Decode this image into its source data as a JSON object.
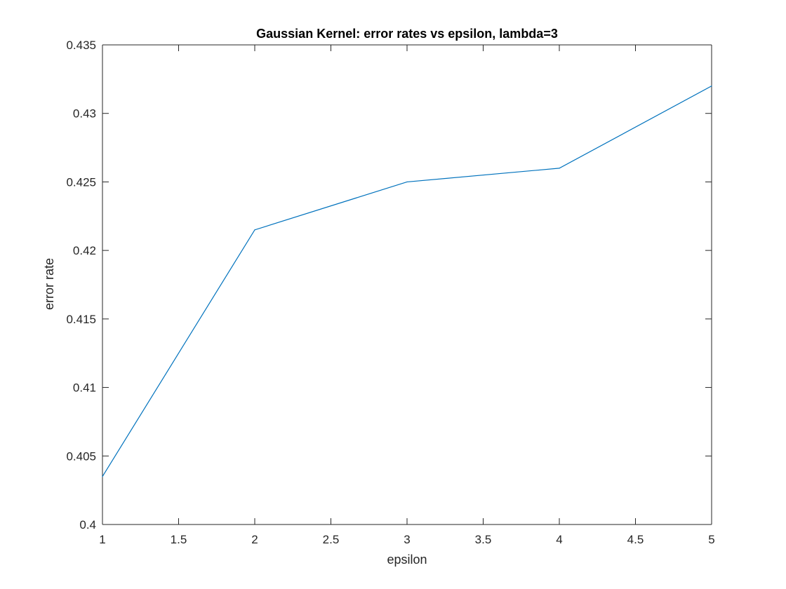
{
  "chart_data": {
    "type": "line",
    "title": "Gaussian Kernel: error rates vs epsilon, lambda=3",
    "xlabel": "epsilon",
    "ylabel": "error rate",
    "xlim": [
      1,
      5
    ],
    "ylim": [
      0.4,
      0.435
    ],
    "xticks": [
      1,
      1.5,
      2,
      2.5,
      3,
      3.5,
      4,
      4.5,
      5
    ],
    "xtick_labels": [
      "1",
      "1.5",
      "2",
      "2.5",
      "3",
      "3.5",
      "4",
      "4.5",
      "5"
    ],
    "yticks": [
      0.4,
      0.405,
      0.41,
      0.415,
      0.42,
      0.425,
      0.43,
      0.435
    ],
    "ytick_labels": [
      "0.4",
      "0.405",
      "0.41",
      "0.415",
      "0.42",
      "0.425",
      "0.43",
      "0.435"
    ],
    "grid": false,
    "legend": "none",
    "series": [
      {
        "color": "#0072BD",
        "x": [
          1,
          2,
          3,
          4,
          5
        ],
        "y": [
          0.4035,
          0.4215,
          0.425,
          0.426,
          0.432
        ]
      }
    ]
  }
}
